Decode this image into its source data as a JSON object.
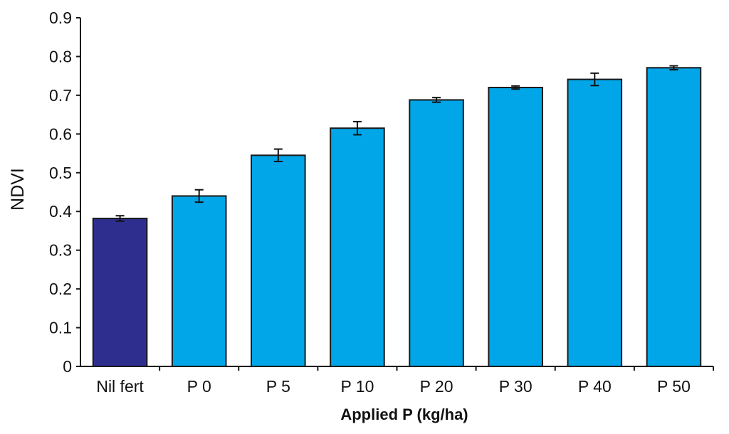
{
  "chart_data": {
    "type": "bar",
    "title": "",
    "xlabel": "Applied P (kg/ha)",
    "ylabel": "NDVI",
    "ylim": [
      0,
      0.9
    ],
    "yticks": [
      0,
      0.1,
      0.2,
      0.3,
      0.4,
      0.5,
      0.6,
      0.7,
      0.8,
      0.9
    ],
    "ytick_labels": [
      "0",
      "0.1",
      "0.2",
      "0.3",
      "0.4",
      "0.5",
      "0.6",
      "0.7",
      "0.8",
      "0.9"
    ],
    "grid": false,
    "categories": [
      "Nil fert",
      "P 0",
      "P 5",
      "P 10",
      "P 20",
      "P 30",
      "P 40",
      "P 50"
    ],
    "values": [
      0.382,
      0.44,
      0.545,
      0.615,
      0.688,
      0.72,
      0.741,
      0.771
    ],
    "errors": [
      0.007,
      0.016,
      0.016,
      0.017,
      0.006,
      0.004,
      0.016,
      0.005
    ],
    "colors": [
      "#2e2e8f",
      "#00a6e8",
      "#00a6e8",
      "#00a6e8",
      "#00a6e8",
      "#00a6e8",
      "#00a6e8",
      "#00a6e8"
    ]
  },
  "colors": {
    "axis": "#1a1a1a",
    "bar_outline": "#1a1a1a"
  }
}
